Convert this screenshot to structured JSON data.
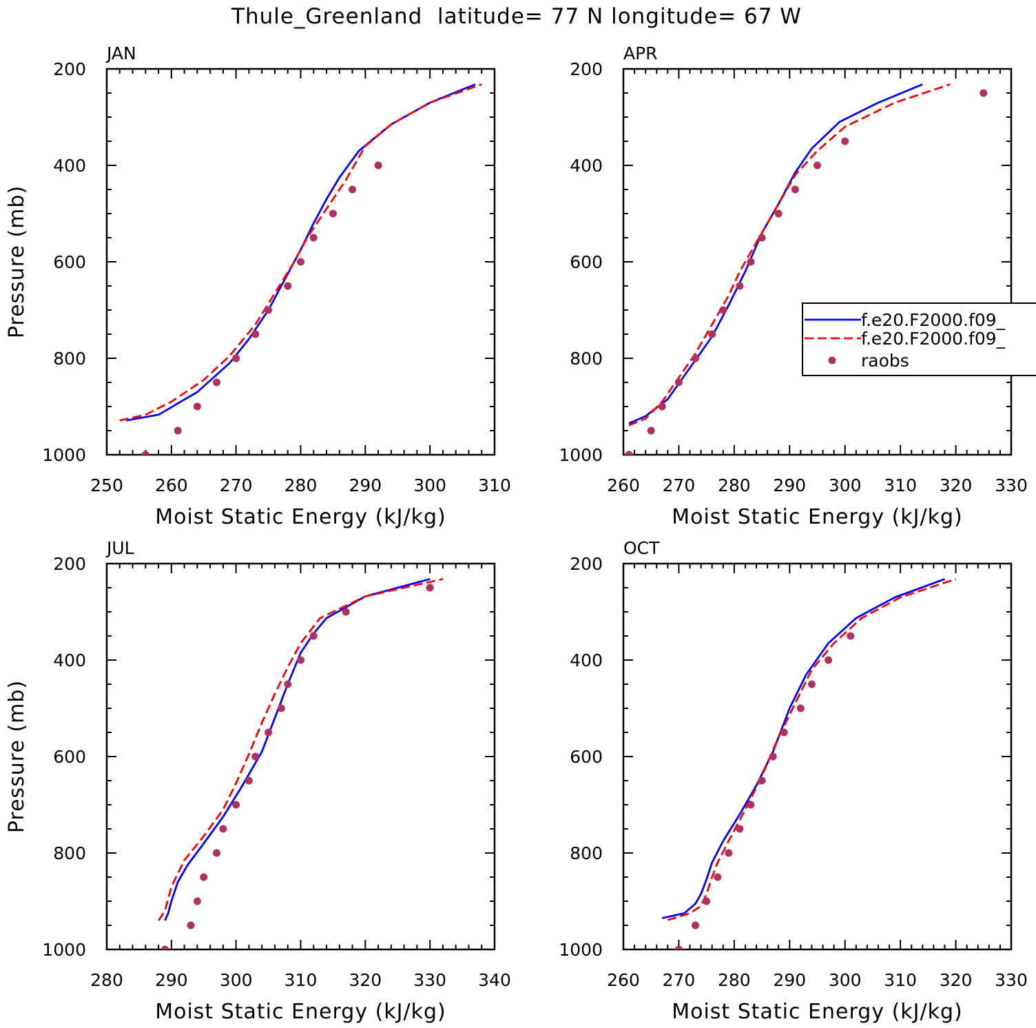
{
  "figure": {
    "title": "Thule_Greenland  latitude= 77 N longitude= 67 W"
  },
  "legend": {
    "entries": [
      {
        "label": "f.e20.F2000.f09_",
        "color": "#0000ff",
        "style": "solid"
      },
      {
        "label": "f.e20.F2000.f09_",
        "color": "#ff0000",
        "style": "dashed"
      },
      {
        "label": "raobs",
        "color": "#b03060",
        "style": "marker"
      }
    ]
  },
  "chart_data": [
    {
      "type": "line",
      "title": "JAN",
      "xlabel": "Moist Static Energy (kJ/kg)",
      "ylabel": "Pressure (mb)",
      "xlim": [
        250,
        310
      ],
      "ylim": [
        200,
        1000
      ],
      "y_inverted": true,
      "xticks": [
        250,
        260,
        270,
        280,
        290,
        300,
        310
      ],
      "yticks": [
        200,
        400,
        600,
        800,
        1000
      ],
      "series": [
        {
          "color": "#0000ff",
          "style": "solid",
          "points": [
            [
              253,
              929
            ],
            [
              258,
              917
            ],
            [
              264,
              870
            ],
            [
              269,
              810
            ],
            [
              272,
              760
            ],
            [
              275,
              700
            ],
            [
              278,
              625
            ],
            [
              280,
              575
            ],
            [
              282,
              520
            ],
            [
              284,
              470
            ],
            [
              286,
              425
            ],
            [
              289,
              370
            ],
            [
              294,
              315
            ],
            [
              300,
              270
            ],
            [
              307,
              232
            ]
          ]
        },
        {
          "color": "#ff0000",
          "style": "dashed",
          "points": [
            [
              252,
              929
            ],
            [
              256,
              917
            ],
            [
              260,
              890
            ],
            [
              265,
              845
            ],
            [
              269,
              795
            ],
            [
              273,
              730
            ],
            [
              276,
              665
            ],
            [
              279,
              600
            ],
            [
              281,
              550
            ],
            [
              284,
              490
            ],
            [
              287,
              430
            ],
            [
              290,
              360
            ],
            [
              294,
              315
            ],
            [
              300,
              270
            ],
            [
              308,
              232
            ]
          ]
        },
        {
          "color": "#b03060",
          "style": "marker",
          "points": [
            [
              256,
              1000
            ],
            [
              261,
              950
            ],
            [
              264,
              900
            ],
            [
              267,
              850
            ],
            [
              270,
              800
            ],
            [
              273,
              750
            ],
            [
              275,
              700
            ],
            [
              278,
              650
            ],
            [
              280,
              600
            ],
            [
              282,
              550
            ],
            [
              285,
              500
            ],
            [
              288,
              450
            ],
            [
              292,
              400
            ]
          ]
        }
      ]
    },
    {
      "type": "line",
      "title": "APR",
      "xlabel": "Moist Static Energy (kJ/kg)",
      "ylabel": "",
      "xlim": [
        260,
        330
      ],
      "ylim": [
        200,
        1000
      ],
      "y_inverted": true,
      "xticks": [
        260,
        270,
        280,
        290,
        300,
        310,
        320,
        330
      ],
      "yticks": [
        200,
        400,
        600,
        800,
        1000
      ],
      "series": [
        {
          "color": "#0000ff",
          "style": "solid",
          "points": [
            [
              261,
              935
            ],
            [
              264,
              920
            ],
            [
              268,
              885
            ],
            [
              272,
              820
            ],
            [
              276,
              755
            ],
            [
              279,
              690
            ],
            [
              282,
              620
            ],
            [
              285,
              540
            ],
            [
              288,
              480
            ],
            [
              291,
              415
            ],
            [
              294,
              365
            ],
            [
              299,
              310
            ],
            [
              306,
              270
            ],
            [
              314,
              232
            ]
          ]
        },
        {
          "color": "#ff0000",
          "style": "dashed",
          "points": [
            [
              261,
              939
            ],
            [
              264,
              925
            ],
            [
              267,
              890
            ],
            [
              270,
              840
            ],
            [
              273,
              790
            ],
            [
              276,
              730
            ],
            [
              279,
              670
            ],
            [
              281,
              620
            ],
            [
              284,
              560
            ],
            [
              288,
              480
            ],
            [
              291,
              420
            ],
            [
              295,
              370
            ],
            [
              300,
              320
            ],
            [
              309,
              270
            ],
            [
              319,
              232
            ]
          ]
        },
        {
          "color": "#b03060",
          "style": "marker",
          "points": [
            [
              261,
              1000
            ],
            [
              265,
              950
            ],
            [
              267,
              900
            ],
            [
              270,
              850
            ],
            [
              273,
              800
            ],
            [
              276,
              750
            ],
            [
              278,
              700
            ],
            [
              281,
              650
            ],
            [
              283,
              600
            ],
            [
              285,
              550
            ],
            [
              288,
              500
            ],
            [
              291,
              450
            ],
            [
              295,
              400
            ],
            [
              300,
              350
            ],
            [
              325,
              250
            ]
          ]
        }
      ]
    },
    {
      "type": "line",
      "title": "JUL",
      "xlabel": "Moist Static Energy (kJ/kg)",
      "ylabel": "Pressure (mb)",
      "xlim": [
        280,
        340
      ],
      "ylim": [
        200,
        1000
      ],
      "y_inverted": true,
      "xticks": [
        280,
        290,
        300,
        310,
        320,
        330,
        340
      ],
      "yticks": [
        200,
        400,
        600,
        800,
        1000
      ],
      "series": [
        {
          "color": "#0000ff",
          "style": "solid",
          "points": [
            [
              289,
              940
            ],
            [
              289.5,
              925
            ],
            [
              290,
              900
            ],
            [
              291,
              860
            ],
            [
              292.5,
              825
            ],
            [
              295,
              780
            ],
            [
              298,
              725
            ],
            [
              301,
              660
            ],
            [
              304,
              590
            ],
            [
              306,
              520
            ],
            [
              308,
              450
            ],
            [
              310,
              385
            ],
            [
              312,
              345
            ],
            [
              314,
              313
            ],
            [
              320,
              268
            ],
            [
              330,
              232
            ]
          ]
        },
        {
          "color": "#ff0000",
          "style": "dashed",
          "points": [
            [
              288,
              940
            ],
            [
              289,
              920
            ],
            [
              290,
              870
            ],
            [
              292,
              815
            ],
            [
              295,
              765
            ],
            [
              298,
              710
            ],
            [
              300,
              655
            ],
            [
              302,
              595
            ],
            [
              304,
              530
            ],
            [
              306,
              470
            ],
            [
              308,
              415
            ],
            [
              310,
              365
            ],
            [
              313,
              313
            ],
            [
              320,
              268
            ],
            [
              332,
              232
            ]
          ]
        },
        {
          "color": "#b03060",
          "style": "marker",
          "points": [
            [
              289,
              1000
            ],
            [
              293,
              950
            ],
            [
              294,
              900
            ],
            [
              295,
              850
            ],
            [
              297,
              800
            ],
            [
              298,
              750
            ],
            [
              300,
              700
            ],
            [
              302,
              650
            ],
            [
              303,
              600
            ],
            [
              305,
              550
            ],
            [
              307,
              500
            ],
            [
              308,
              450
            ],
            [
              310,
              400
            ],
            [
              312,
              350
            ],
            [
              317,
              300
            ],
            [
              330,
              250
            ]
          ]
        }
      ]
    },
    {
      "type": "line",
      "title": "OCT",
      "xlabel": "Moist Static Energy (kJ/kg)",
      "ylabel": "",
      "xlim": [
        260,
        330
      ],
      "ylim": [
        200,
        1000
      ],
      "y_inverted": true,
      "xticks": [
        260,
        270,
        280,
        290,
        300,
        310,
        320,
        330
      ],
      "yticks": [
        200,
        400,
        600,
        800,
        1000
      ],
      "series": [
        {
          "color": "#0000ff",
          "style": "solid",
          "points": [
            [
              267,
              935
            ],
            [
              271,
              925
            ],
            [
              273,
              905
            ],
            [
              274,
              885
            ],
            [
              275,
              855
            ],
            [
              276,
              820
            ],
            [
              278,
              775
            ],
            [
              281,
              720
            ],
            [
              284,
              660
            ],
            [
              287,
              590
            ],
            [
              290,
              500
            ],
            [
              293,
              430
            ],
            [
              297,
              365
            ],
            [
              302,
              313
            ],
            [
              309,
              270
            ],
            [
              318,
              232
            ]
          ]
        },
        {
          "color": "#ff0000",
          "style": "dashed",
          "points": [
            [
              268,
              939
            ],
            [
              272,
              925
            ],
            [
              274,
              910
            ],
            [
              275,
              885
            ],
            [
              276,
              850
            ],
            [
              277,
              820
            ],
            [
              279,
              775
            ],
            [
              282,
              710
            ],
            [
              285,
              640
            ],
            [
              288,
              560
            ],
            [
              291,
              490
            ],
            [
              294,
              420
            ],
            [
              298,
              365
            ],
            [
              303,
              313
            ],
            [
              310,
              270
            ],
            [
              320,
              232
            ]
          ]
        },
        {
          "color": "#b03060",
          "style": "marker",
          "points": [
            [
              270,
              1000
            ],
            [
              273,
              950
            ],
            [
              275,
              900
            ],
            [
              277,
              850
            ],
            [
              279,
              800
            ],
            [
              281,
              750
            ],
            [
              283,
              700
            ],
            [
              285,
              650
            ],
            [
              287,
              600
            ],
            [
              289,
              550
            ],
            [
              292,
              500
            ],
            [
              294,
              450
            ],
            [
              297,
              400
            ],
            [
              301,
              350
            ]
          ]
        }
      ]
    }
  ]
}
